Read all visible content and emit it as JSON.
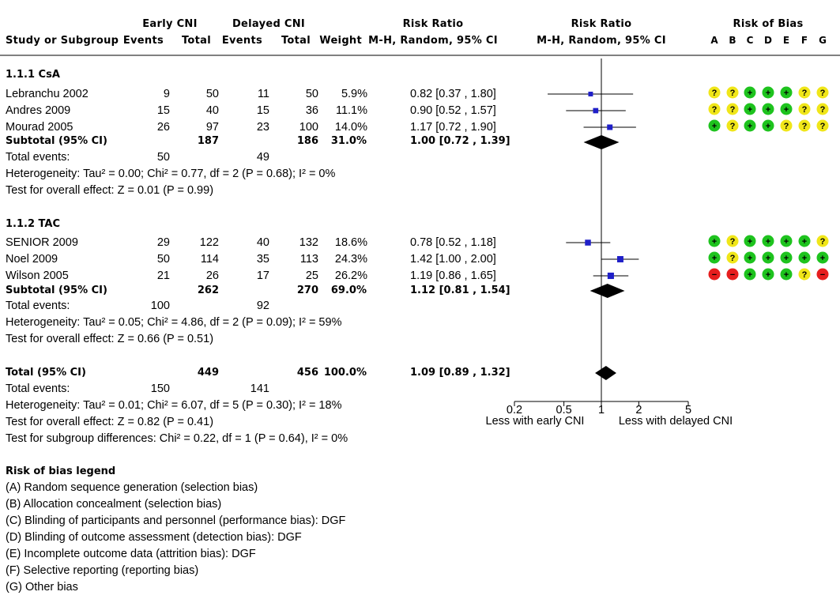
{
  "header": {
    "group1": "Early CNI",
    "group2": "Delayed CNI",
    "rr_col": "Risk Ratio",
    "rr_plot": "Risk Ratio",
    "rob": "Risk of Bias",
    "study": "Study or Subgroup",
    "events1": "Events",
    "total1": "Total",
    "events2": "Events",
    "total2": "Total",
    "weight": "Weight",
    "method_col": "M-H, Random, 95% CI",
    "method_plot": "M-H, Random, 95% CI",
    "rob_letters": [
      "A",
      "B",
      "C",
      "D",
      "E",
      "F",
      "G"
    ]
  },
  "chart_data": {
    "type": "forest",
    "measure": "Risk Ratio",
    "x_scale": "log",
    "xlim": [
      0.2,
      5
    ],
    "ticks": [
      0.2,
      0.5,
      1,
      2,
      5
    ],
    "tick_labels": [
      "0.2",
      "0.5",
      "1",
      "2",
      "5"
    ],
    "null_value": 1,
    "left_label": "Less with early CNI",
    "right_label": "Less with delayed CNI",
    "subgroups": [
      {
        "name": "1.1.1 CsA",
        "studies": [
          {
            "study": "Lebranchu 2002",
            "e1": "9",
            "n1": "50",
            "e2": "11",
            "n2": "50",
            "weight": "5.9%",
            "ci_text": "0.82 [0.37 , 1.80]",
            "rr": 0.82,
            "lo": 0.37,
            "hi": 1.8,
            "w": 5.9,
            "rob": [
              "?",
              "?",
              "+",
              "+",
              "+",
              "?",
              "?"
            ]
          },
          {
            "study": "Andres 2009",
            "e1": "15",
            "n1": "40",
            "e2": "15",
            "n2": "36",
            "weight": "11.1%",
            "ci_text": "0.90 [0.52 , 1.57]",
            "rr": 0.9,
            "lo": 0.52,
            "hi": 1.57,
            "w": 11.1,
            "rob": [
              "?",
              "?",
              "+",
              "+",
              "+",
              "?",
              "?"
            ]
          },
          {
            "study": "Mourad 2005",
            "e1": "26",
            "n1": "97",
            "e2": "23",
            "n2": "100",
            "weight": "14.0%",
            "ci_text": "1.17 [0.72 , 1.90]",
            "rr": 1.17,
            "lo": 0.72,
            "hi": 1.9,
            "w": 14.0,
            "rob": [
              "+",
              "?",
              "+",
              "+",
              "?",
              "?",
              "?"
            ]
          }
        ],
        "subtotal": {
          "label": "Subtotal (95% CI)",
          "n1": "187",
          "n2": "186",
          "weight": "31.0%",
          "ci_text": "1.00 [0.72 , 1.39]",
          "rr": 1.0,
          "lo": 0.72,
          "hi": 1.39
        },
        "total_events": {
          "label": "Total events:",
          "e1": "50",
          "e2": "49"
        },
        "heterogeneity": "Heterogeneity: Tau² = 0.00; Chi² = 0.77, df = 2 (P = 0.68); I² = 0%",
        "overall": "Test for overall effect: Z = 0.01 (P = 0.99)"
      },
      {
        "name": "1.1.2 TAC",
        "studies": [
          {
            "study": "SENIOR 2009",
            "e1": "29",
            "n1": "122",
            "e2": "40",
            "n2": "132",
            "weight": "18.6%",
            "ci_text": "0.78 [0.52 , 1.18]",
            "rr": 0.78,
            "lo": 0.52,
            "hi": 1.18,
            "w": 18.6,
            "rob": [
              "+",
              "?",
              "+",
              "+",
              "+",
              "+",
              "?"
            ]
          },
          {
            "study": "Noel 2009",
            "e1": "50",
            "n1": "114",
            "e2": "35",
            "n2": "113",
            "weight": "24.3%",
            "ci_text": "1.42 [1.00 , 2.00]",
            "rr": 1.42,
            "lo": 1.0,
            "hi": 2.0,
            "w": 24.3,
            "rob": [
              "+",
              "?",
              "+",
              "+",
              "+",
              "+",
              "+"
            ]
          },
          {
            "study": "Wilson 2005",
            "e1": "21",
            "n1": "26",
            "e2": "17",
            "n2": "25",
            "weight": "26.2%",
            "ci_text": "1.19 [0.86 , 1.65]",
            "rr": 1.19,
            "lo": 0.86,
            "hi": 1.65,
            "w": 26.2,
            "rob": [
              "-",
              "-",
              "+",
              "+",
              "+",
              "?",
              "-"
            ]
          }
        ],
        "subtotal": {
          "label": "Subtotal (95% CI)",
          "n1": "262",
          "n2": "270",
          "weight": "69.0%",
          "ci_text": "1.12 [0.81 , 1.54]",
          "rr": 1.12,
          "lo": 0.81,
          "hi": 1.54
        },
        "total_events": {
          "label": "Total events:",
          "e1": "100",
          "e2": "92"
        },
        "heterogeneity": "Heterogeneity: Tau² = 0.05; Chi² = 4.86, df = 2 (P = 0.09); I² = 59%",
        "overall": "Test for overall effect: Z = 0.66 (P = 0.51)"
      }
    ],
    "total": {
      "label": "Total (95% CI)",
      "n1": "449",
      "n2": "456",
      "weight": "100.0%",
      "ci_text": "1.09 [0.89 , 1.32]",
      "rr": 1.09,
      "lo": 0.89,
      "hi": 1.32,
      "total_events": {
        "label": "Total events:",
        "e1": "150",
        "e2": "141"
      },
      "heterogeneity": "Heterogeneity: Tau² = 0.01; Chi² = 6.07, df = 5 (P = 0.30); I² = 18%",
      "overall": "Test for overall effect: Z = 0.82 (P = 0.41)",
      "subgroup_diff": "Test for subgroup differences: Chi² = 0.22, df = 1 (P = 0.64), I² = 0%"
    }
  },
  "legend": {
    "title": "Risk of bias legend",
    "items": [
      "(A) Random sequence generation (selection bias)",
      "(B) Allocation concealment (selection bias)",
      "(C) Blinding of participants and personnel (performance bias): DGF",
      "(D) Blinding of outcome assessment (detection bias): DGF",
      "(E) Incomplete outcome data (attrition bias): DGF",
      "(F) Selective reporting (reporting bias)",
      "(G) Other bias"
    ]
  },
  "colors": {
    "low_risk": "#1ec31e",
    "unclear_risk": "#f0e619",
    "high_risk": "#e61e1e",
    "point": "#1f1fc8",
    "diamond": "#000000"
  }
}
